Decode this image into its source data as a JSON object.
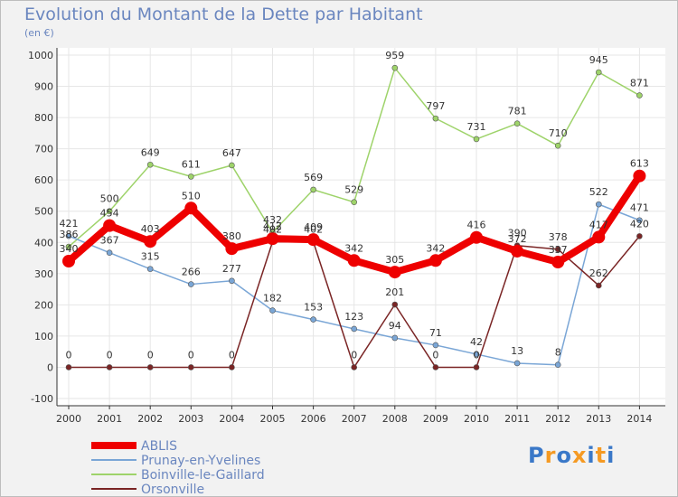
{
  "title": "Evolution du Montant de la Dette par Habitant",
  "subtitle": "(en €)",
  "logo": {
    "letters": [
      "P",
      "r",
      "o",
      "x",
      "i",
      "t",
      "i"
    ],
    "colors": [
      "#3a78c8",
      "#f59a23",
      "#3a78c8",
      "#f59a23",
      "#3a78c8",
      "#f59a23",
      "#3a78c8"
    ]
  },
  "chart_data": {
    "type": "line",
    "x": [
      "2000",
      "2001",
      "2002",
      "2003",
      "2004",
      "2005",
      "2006",
      "2007",
      "2008",
      "2009",
      "2010",
      "2011",
      "2012",
      "2013",
      "2014"
    ],
    "yticks": [
      "1000",
      "900",
      "800",
      "700",
      "600",
      "500",
      "400",
      "300",
      "200",
      "100",
      "0",
      "-100"
    ],
    "ylim": [
      -100,
      1000
    ],
    "grid": true,
    "legend_position": "bottom-left",
    "series": [
      {
        "name": "ABLIS",
        "color": "#ee0000",
        "values": [
          340,
          454,
          403,
          510,
          380,
          412,
          409,
          342,
          305,
          342,
          416,
          372,
          337,
          417,
          613
        ],
        "labels": [
          "340",
          "454",
          "403",
          "510",
          "380",
          "412",
          "409",
          "342",
          "305",
          "342",
          "416",
          "372",
          "337",
          "417",
          "613"
        ]
      },
      {
        "name": "Prunay-en-Yvelines",
        "color": "#7aa6d6",
        "values": [
          421,
          367,
          315,
          266,
          277,
          182,
          153,
          123,
          94,
          71,
          42,
          13,
          8,
          522,
          471
        ],
        "labels": [
          "421",
          "367",
          "315",
          "266",
          "277",
          "182",
          "153",
          "123",
          "94",
          "71",
          "42",
          "13",
          "8",
          "522",
          "471"
        ]
      },
      {
        "name": "Boinville-le-Gaillard",
        "color": "#9ed36a",
        "values": [
          386,
          500,
          649,
          611,
          647,
          432,
          569,
          529,
          959,
          797,
          731,
          781,
          710,
          945,
          871
        ],
        "labels": [
          "386",
          "500",
          "649",
          "611",
          "647",
          "432",
          "569",
          "529",
          "959",
          "797",
          "731",
          "781",
          "710",
          "945",
          "871"
        ]
      },
      {
        "name": "Orsonville",
        "color": "#7a2525",
        "values": [
          0,
          0,
          0,
          0,
          0,
          402,
          402,
          0,
          201,
          0,
          0,
          390,
          378,
          262,
          420
        ],
        "labels": [
          "0",
          "0",
          "0",
          "0",
          "0",
          "402",
          "402",
          "0",
          "201",
          "0",
          "0",
          "390",
          "378",
          "262",
          "420"
        ]
      }
    ]
  }
}
